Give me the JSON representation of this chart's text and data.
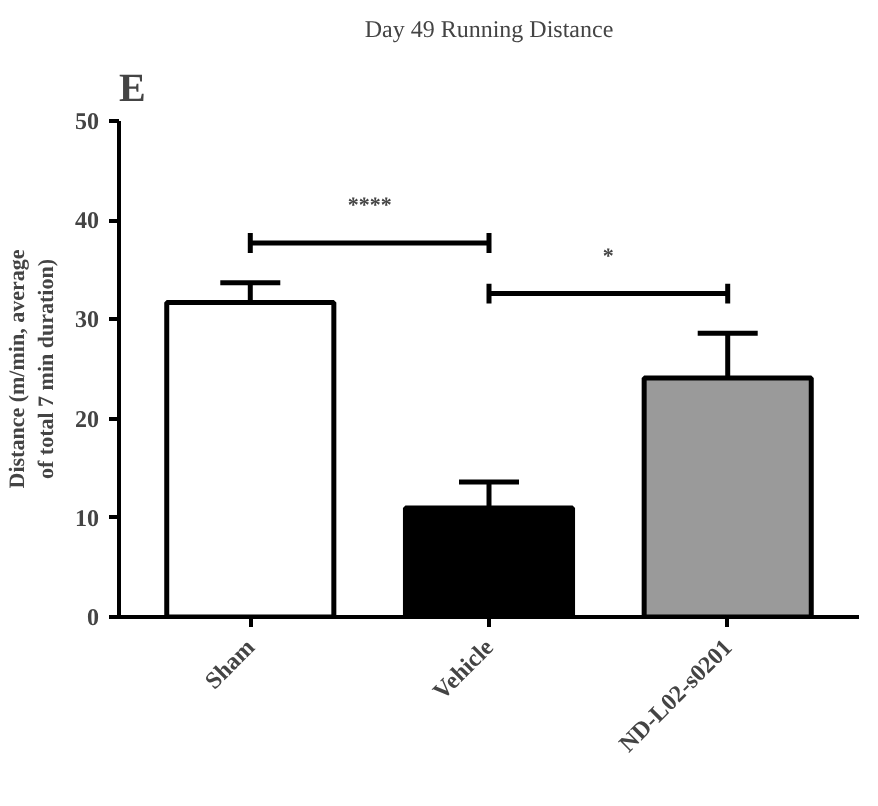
{
  "chart_data": {
    "type": "bar",
    "title": "Day 49 Running Distance",
    "ylabel": "Distance (m/min, average\nof total 7 min duration)",
    "categories": [
      "Sham",
      "Vehicle",
      "ND-L02-s0201"
    ],
    "values": [
      31.7,
      11.0,
      24.1
    ],
    "colors": [
      "#ffffff",
      "#000000",
      "#9a9a9a"
    ],
    "errors": [
      [
        31.7,
        33.7
      ],
      [
        11.0,
        13.6
      ],
      [
        24.1,
        28.6
      ]
    ],
    "ylim": [
      0,
      50
    ],
    "yticks": [
      0,
      10,
      20,
      30,
      40,
      50
    ],
    "grid": false,
    "annotations": [
      "E",
      "****",
      "*"
    ]
  }
}
